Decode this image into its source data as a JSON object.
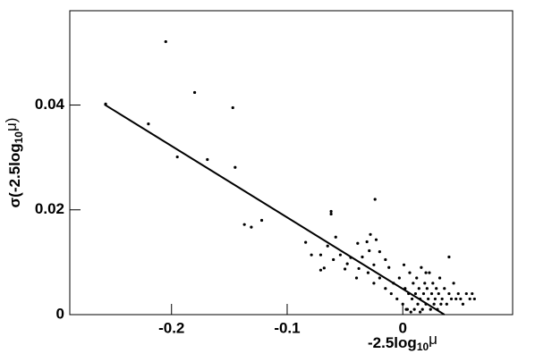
{
  "chart_data": {
    "type": "scatter",
    "x_label": [
      "-2.5log",
      "10",
      "μ"
    ],
    "y_label": [
      "σ(-2.5log",
      "10",
      "μ)"
    ],
    "xlim": [
      -0.288,
      0.095
    ],
    "ylim": [
      0,
      0.058
    ],
    "xticks": [
      {
        "value": -0.2,
        "label": "-0.2"
      },
      {
        "value": -0.1,
        "label": "-0.1"
      },
      0
    ],
    "yticks": [
      0,
      {
        "value": 0.02,
        "label": "0.02"
      },
      {
        "value": 0.04,
        "label": "0.04"
      }
    ],
    "color": "#000000",
    "x": [
      -0.257,
      -0.205,
      -0.22,
      -0.18,
      -0.195,
      -0.169,
      -0.147,
      -0.145,
      -0.137,
      -0.131,
      -0.122,
      -0.062,
      -0.062,
      -0.024,
      -0.084,
      -0.079,
      -0.071,
      -0.068,
      -0.071,
      -0.065,
      -0.058,
      -0.054,
      -0.048,
      -0.045,
      -0.039,
      -0.038,
      -0.031,
      -0.029,
      -0.028,
      -0.023,
      -0.02,
      -0.015,
      -0.035,
      -0.05,
      -0.06,
      -0.04,
      -0.025,
      -0.03,
      -0.025,
      -0.02,
      -0.015,
      -0.012,
      -0.01,
      -0.008,
      -0.005,
      -0.003,
      0,
      0.002,
      0.004,
      0.005,
      0.006,
      0.008,
      0.009,
      0.01,
      0.011,
      0.012,
      0.013,
      0.014,
      0.015,
      0.016,
      0.017,
      0.018,
      0.019,
      0.02,
      0.021,
      0.022,
      0.023,
      0.024,
      0.025,
      0.026,
      0.027,
      0.028,
      0.029,
      0.03,
      0.031,
      0.032,
      0.033,
      0.034,
      0.036,
      0.038,
      0.04,
      0.042,
      0.044,
      0.046,
      0.048,
      0.05,
      0.052,
      0.055,
      0.058,
      0.06,
      0.062,
      0.04,
      0.003,
      0.007,
      0.015,
      0.001,
      0.02
    ],
    "y": [
      0.0402,
      0.0521,
      0.0364,
      0.0424,
      0.0301,
      0.0296,
      0.0395,
      0.0281,
      0.0172,
      0.0167,
      0.018,
      0.0197,
      0.0192,
      0.022,
      0.0138,
      0.0114,
      0.0114,
      0.0089,
      0.0085,
      0.0131,
      0.0148,
      0.0114,
      0.0097,
      0.0109,
      0.0136,
      0.0088,
      0.0139,
      0.0122,
      0.0153,
      0.0143,
      0.012,
      0.0105,
      0.011,
      0.0087,
      0.0105,
      0.007,
      0.0095,
      0.008,
      0.006,
      0.007,
      0.005,
      0.009,
      0.004,
      0.006,
      0.003,
      0.007,
      0.002,
      0.005,
      0.001,
      0.004,
      0.008,
      0.003,
      0.006,
      0.001,
      0.004,
      0.007,
      0.002,
      0.005,
      0.003,
      0.009,
      0.001,
      0.004,
      0.006,
      0.002,
      0.005,
      0.003,
      0.008,
      0.001,
      0.004,
      0.006,
      0.002,
      0.003,
      0.005,
      0.001,
      0.004,
      0.007,
      0.002,
      0.003,
      0.005,
      0.002,
      0.004,
      0.003,
      0.006,
      0.003,
      0.004,
      0.003,
      0.002,
      0.004,
      0.003,
      0.004,
      0.003,
      0.011,
      0.001,
      0.0005,
      0.0005,
      0.0095,
      0.008
    ],
    "fit_line": {
      "x": [
        -0.258,
        0.036
      ],
      "y": [
        0.0401,
        0
      ]
    }
  }
}
